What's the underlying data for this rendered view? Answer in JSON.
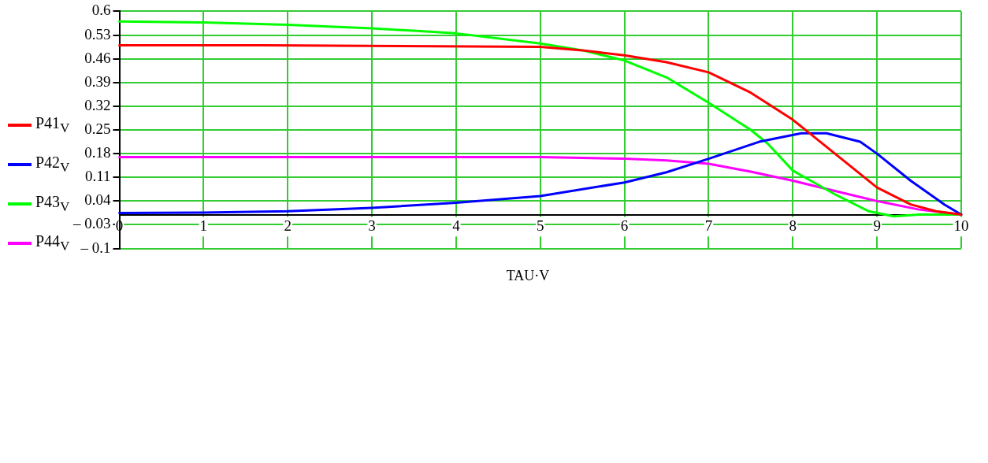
{
  "chart_data": {
    "type": "line",
    "xlabel": "TAU·V",
    "legend": "left",
    "grid": true,
    "marker": "none",
    "line_style": "solid",
    "xlim": [
      0,
      10
    ],
    "xticks": [
      0,
      1,
      2,
      3,
      4,
      5,
      6,
      7,
      8,
      9,
      10
    ],
    "ylim": [
      -0.1,
      0.6
    ],
    "yticks": [
      {
        "value": -0.1,
        "label": "– 0.1"
      },
      {
        "value": -0.03,
        "label": "– 0.03"
      },
      0.04,
      0.11,
      0.18,
      0.25,
      0.32,
      0.39,
      0.46,
      0.53,
      0.6
    ],
    "series": [
      {
        "name": "P41$_{V}$",
        "color": "#ff0000",
        "x": [
          0,
          1.7,
          5,
          5.5,
          6,
          6.5,
          7,
          7.5,
          8,
          8.5,
          9,
          9.4,
          9.7,
          10
        ],
        "values": [
          0.5,
          0.5,
          0.495,
          0.485,
          0.47,
          0.45,
          0.42,
          0.36,
          0.28,
          0.18,
          0.08,
          0.03,
          0.01,
          0
        ]
      },
      {
        "name": "P42$_{V}$",
        "color": "#0000ff",
        "x": [
          0,
          1,
          2,
          3,
          4,
          5,
          6,
          6.5,
          7,
          7.6,
          8.1,
          8.4,
          8.8,
          9,
          9.4,
          9.8,
          10
        ],
        "values": [
          0.005,
          0.006,
          0.01,
          0.02,
          0.035,
          0.055,
          0.095,
          0.125,
          0.165,
          0.215,
          0.24,
          0.24,
          0.215,
          0.18,
          0.1,
          0.03,
          0
        ]
      },
      {
        "name": "P43$_{V}$",
        "color": "#00ff00",
        "x": [
          0,
          1,
          2,
          3,
          4,
          5,
          5.5,
          6,
          6.5,
          7,
          7.5,
          7.7,
          8,
          8.5,
          8.9,
          9.2,
          9.5,
          10
        ],
        "values": [
          0.57,
          0.567,
          0.56,
          0.55,
          0.535,
          0.505,
          0.485,
          0.455,
          0.405,
          0.33,
          0.25,
          0.21,
          0.13,
          0.06,
          0.01,
          -0.005,
          0,
          0
        ]
      },
      {
        "name": "P44$_{V}$",
        "color": "#ff00ff",
        "x": [
          0,
          5,
          6,
          6.5,
          7,
          7.5,
          8,
          8.5,
          9,
          9.5,
          10
        ],
        "values": [
          0.17,
          0.17,
          0.165,
          0.16,
          0.15,
          0.127,
          0.1,
          0.07,
          0.04,
          0.015,
          0
        ]
      }
    ]
  }
}
